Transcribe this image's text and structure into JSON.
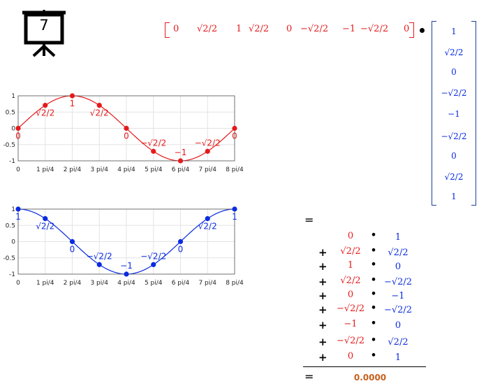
{
  "slide": {
    "number": "7"
  },
  "row_vector": [
    "0",
    "√2/2",
    "1",
    "√2/2",
    "0",
    "−√2/2",
    "−1",
    "−√2/2",
    "0"
  ],
  "column_vector": [
    "1",
    "√2/2",
    "0",
    "−√2/2",
    "−1",
    "−√2/2",
    "0",
    "√2/2",
    "1"
  ],
  "sum": {
    "equals": "=",
    "operator": "+",
    "times": "•",
    "rows": [
      {
        "a": "0",
        "b": "1"
      },
      {
        "a": "√2/2",
        "b": "√2/2"
      },
      {
        "a": "1",
        "b": "0"
      },
      {
        "a": "√2/2",
        "b": "−√2/2"
      },
      {
        "a": "0",
        "b": "−1"
      },
      {
        "a": "−√2/2",
        "b": "−√2/2"
      },
      {
        "a": "−1",
        "b": "0"
      },
      {
        "a": "−√2/2",
        "b": "√2/2"
      },
      {
        "a": "0",
        "b": "1"
      }
    ],
    "result": "0.0000"
  },
  "chart_data": [
    {
      "type": "line",
      "color": "#e41a1c",
      "x": [
        0,
        1,
        2,
        3,
        4,
        5,
        6,
        7,
        8
      ],
      "y": [
        0,
        0.7071,
        1,
        0.7071,
        0,
        -0.7071,
        -1,
        -0.7071,
        0
      ],
      "xticks": [
        "0",
        "1 pi/4",
        "2 pi/4",
        "3 pi/4",
        "4 pi/4",
        "5 pi/4",
        "6 pi/4",
        "7 pi/4",
        "8 pi/4"
      ],
      "yticks": [
        "-1",
        "-0.5",
        "0",
        "0.5",
        "1"
      ],
      "ylim": [
        -1,
        1
      ],
      "grid": true,
      "point_labels": [
        "0",
        "√2/2",
        "1",
        "√2/2",
        "0",
        "−√2/2",
        "−1",
        "−√2/2",
        "0"
      ]
    },
    {
      "type": "line",
      "color": "#0a2be0",
      "x": [
        0,
        1,
        2,
        3,
        4,
        5,
        6,
        7,
        8
      ],
      "y": [
        1,
        0.7071,
        0,
        -0.7071,
        -1,
        -0.7071,
        0,
        0.7071,
        1
      ],
      "xticks": [
        "0",
        "1 pi/4",
        "2 pi/4",
        "3 pi/4",
        "4 pi/4",
        "5 pi/4",
        "6 pi/4",
        "7 pi/4",
        "8 pi/4"
      ],
      "yticks": [
        "-1",
        "-0.5",
        "0",
        "0.5",
        "1"
      ],
      "ylim": [
        -1,
        1
      ],
      "grid": true,
      "point_labels": [
        "1",
        "√2/2",
        "0",
        "−√2/2",
        "−1",
        "−√2/2",
        "0",
        "√2/2",
        "1"
      ]
    }
  ]
}
